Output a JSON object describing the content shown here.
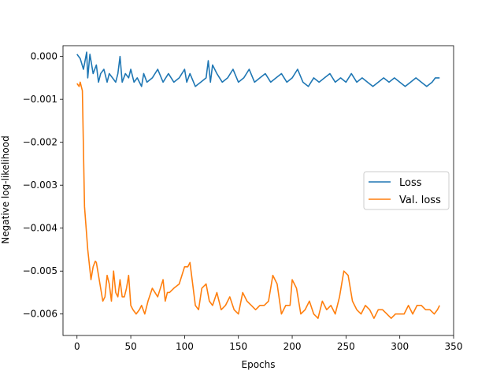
{
  "chart_data": {
    "type": "line",
    "title": "",
    "xlabel": "Epochs",
    "ylabel": "Negative log-likelihood",
    "xlim": [
      -13,
      350
    ],
    "ylim": [
      -0.0065,
      0.00025
    ],
    "xticks": [
      0,
      50,
      100,
      150,
      200,
      250,
      300,
      350
    ],
    "xtick_labels": [
      "0",
      "50",
      "100",
      "150",
      "200",
      "250",
      "300",
      "350"
    ],
    "yticks": [
      0.0,
      -0.001,
      -0.002,
      -0.003,
      -0.004,
      -0.005,
      -0.006
    ],
    "ytick_labels": [
      "0.000",
      "−0.001",
      "−0.002",
      "−0.003",
      "−0.004",
      "−0.005",
      "−0.006"
    ],
    "grid": false,
    "legend_position": "center-right",
    "series": [
      {
        "name": "Loss",
        "color": "#1f77b4",
        "x": [
          0,
          3,
          6,
          9,
          10,
          12,
          15,
          18,
          20,
          22,
          25,
          28,
          30,
          33,
          36,
          38,
          40,
          42,
          45,
          48,
          50,
          53,
          56,
          60,
          62,
          65,
          70,
          75,
          80,
          85,
          90,
          95,
          100,
          102,
          105,
          110,
          115,
          120,
          122,
          124,
          126,
          130,
          135,
          140,
          145,
          150,
          155,
          160,
          165,
          170,
          175,
          180,
          185,
          190,
          195,
          200,
          205,
          210,
          215,
          220,
          225,
          230,
          235,
          240,
          245,
          250,
          255,
          260,
          265,
          270,
          275,
          280,
          285,
          290,
          295,
          300,
          305,
          310,
          315,
          320,
          325,
          330,
          333,
          337
        ],
        "y": [
          5e-05,
          -5e-05,
          -0.0003,
          0.0001,
          -0.0005,
          5e-05,
          -0.0004,
          -0.0002,
          -0.0006,
          -0.0004,
          -0.0003,
          -0.0006,
          -0.0004,
          -0.0005,
          -0.0006,
          -0.0004,
          0.0,
          -0.0006,
          -0.0004,
          -0.0005,
          -0.0003,
          -0.0006,
          -0.0005,
          -0.0007,
          -0.0004,
          -0.0006,
          -0.0005,
          -0.0003,
          -0.0006,
          -0.0004,
          -0.0006,
          -0.0005,
          -0.0003,
          -0.0006,
          -0.0004,
          -0.0007,
          -0.0006,
          -0.0005,
          -0.0001,
          -0.0006,
          -0.0002,
          -0.0004,
          -0.0006,
          -0.0005,
          -0.0003,
          -0.0006,
          -0.0005,
          -0.0003,
          -0.0006,
          -0.0005,
          -0.0004,
          -0.0006,
          -0.0005,
          -0.0004,
          -0.0006,
          -0.0005,
          -0.0003,
          -0.0006,
          -0.0007,
          -0.0005,
          -0.0006,
          -0.0005,
          -0.0004,
          -0.0006,
          -0.0005,
          -0.0006,
          -0.0004,
          -0.0006,
          -0.0005,
          -0.0006,
          -0.0007,
          -0.0006,
          -0.0005,
          -0.0006,
          -0.0005,
          -0.0006,
          -0.0007,
          -0.0006,
          -0.0005,
          -0.0006,
          -0.0007,
          -0.0006,
          -0.0005,
          -0.0005
        ]
      },
      {
        "name": "Val. loss",
        "color": "#ff7f0e",
        "x": [
          0,
          2,
          3,
          4,
          5,
          7,
          10,
          13,
          15,
          17,
          18,
          20,
          22,
          24,
          26,
          28,
          30,
          32,
          34,
          36,
          38,
          40,
          42,
          44,
          46,
          48,
          50,
          52,
          55,
          58,
          60,
          63,
          66,
          70,
          75,
          80,
          82,
          84,
          86,
          90,
          95,
          100,
          103,
          105,
          107,
          110,
          113,
          116,
          120,
          123,
          126,
          130,
          134,
          138,
          142,
          146,
          150,
          154,
          158,
          162,
          166,
          170,
          174,
          178,
          182,
          186,
          190,
          194,
          198,
          200,
          204,
          208,
          212,
          216,
          220,
          224,
          228,
          232,
          236,
          240,
          244,
          248,
          252,
          256,
          260,
          264,
          268,
          272,
          276,
          280,
          284,
          288,
          292,
          296,
          300,
          304,
          308,
          312,
          316,
          320,
          324,
          328,
          332,
          335,
          337
        ],
        "y": [
          -0.00063,
          -0.0007,
          -0.0006,
          -0.0007,
          -0.0008,
          -0.0035,
          -0.0045,
          -0.0052,
          -0.0049,
          -0.00477,
          -0.0048,
          -0.0051,
          -0.0054,
          -0.0057,
          -0.0056,
          -0.0051,
          -0.0053,
          -0.0057,
          -0.005,
          -0.0055,
          -0.0056,
          -0.0052,
          -0.0056,
          -0.0056,
          -0.0054,
          -0.0051,
          -0.0058,
          -0.0059,
          -0.006,
          -0.0059,
          -0.0058,
          -0.006,
          -0.0057,
          -0.0054,
          -0.0056,
          -0.0052,
          -0.0057,
          -0.0055,
          -0.0055,
          -0.0054,
          -0.0053,
          -0.0049,
          -0.0049,
          -0.0048,
          -0.0052,
          -0.0058,
          -0.0059,
          -0.0054,
          -0.0053,
          -0.0057,
          -0.0058,
          -0.0055,
          -0.0059,
          -0.0058,
          -0.0056,
          -0.0059,
          -0.006,
          -0.0055,
          -0.0057,
          -0.0058,
          -0.0059,
          -0.0058,
          -0.0058,
          -0.0057,
          -0.0051,
          -0.0053,
          -0.006,
          -0.0058,
          -0.0058,
          -0.0052,
          -0.0054,
          -0.006,
          -0.0059,
          -0.0057,
          -0.006,
          -0.0061,
          -0.0057,
          -0.0059,
          -0.0058,
          -0.006,
          -0.0056,
          -0.005,
          -0.0051,
          -0.0057,
          -0.0059,
          -0.006,
          -0.0058,
          -0.0059,
          -0.0061,
          -0.0059,
          -0.0059,
          -0.006,
          -0.0061,
          -0.006,
          -0.006,
          -0.006,
          -0.0058,
          -0.006,
          -0.0058,
          -0.0058,
          -0.0059,
          -0.0059,
          -0.006,
          -0.0059,
          -0.0058
        ]
      }
    ]
  }
}
